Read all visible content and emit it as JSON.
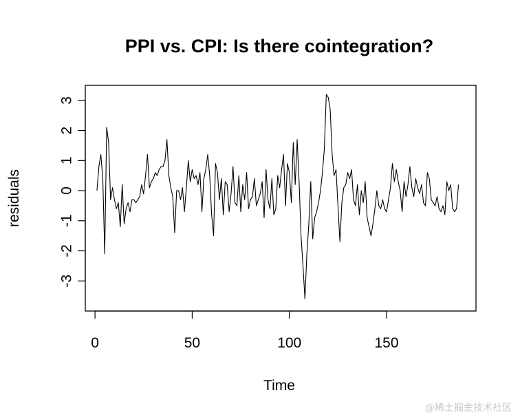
{
  "chart_data": {
    "type": "line",
    "title": "PPI vs. CPI: Is there cointegration?",
    "xlabel": "Time",
    "ylabel": "residuals",
    "xlim": [
      -5,
      196
    ],
    "ylim": [
      -4.0,
      3.5
    ],
    "xticks": [
      0,
      50,
      100,
      150
    ],
    "yticks": [
      -3,
      -2,
      -1,
      0,
      1,
      2,
      3
    ],
    "series": [
      {
        "name": "residuals",
        "x_start": 1,
        "values": [
          0.0,
          0.8,
          1.2,
          0.4,
          -2.1,
          2.1,
          1.6,
          -0.3,
          0.1,
          -0.3,
          -0.6,
          -0.4,
          -1.2,
          0.2,
          -1.1,
          -0.6,
          -0.4,
          -0.7,
          -0.3,
          -0.3,
          -0.4,
          -0.3,
          -0.2,
          0.2,
          -0.1,
          0.5,
          1.2,
          0.1,
          0.3,
          0.4,
          0.6,
          0.5,
          0.7,
          0.8,
          0.8,
          1.0,
          1.7,
          0.5,
          0.1,
          -0.2,
          -1.4,
          0.0,
          0.0,
          -0.3,
          0.1,
          -0.7,
          0.1,
          1.0,
          0.3,
          0.7,
          0.4,
          0.5,
          0.2,
          0.6,
          -0.7,
          0.4,
          0.7,
          1.2,
          0.5,
          -0.8,
          -1.5,
          0.9,
          0.6,
          -0.3,
          0.4,
          -0.8,
          0.3,
          0.2,
          -0.7,
          -0.1,
          0.8,
          -0.4,
          -0.5,
          0.5,
          -0.7,
          0.2,
          -0.3,
          0.6,
          -0.6,
          -0.3,
          -0.2,
          0.4,
          -0.5,
          -0.3,
          -0.1,
          0.3,
          -0.9,
          0.7,
          -0.3,
          -0.6,
          0.4,
          -0.8,
          -0.6,
          0.5,
          0.1,
          0.7,
          1.2,
          -0.5,
          0.9,
          0.6,
          -0.4,
          1.6,
          0.2,
          1.7,
          0.3,
          -1.5,
          -2.5,
          -3.6,
          -2.1,
          -1.1,
          0.3,
          -1.6,
          -0.9,
          -0.7,
          -0.4,
          0.0,
          0.6,
          1.4,
          3.2,
          3.1,
          2.7,
          1.2,
          0.5,
          0.7,
          -0.5,
          -1.7,
          -0.4,
          0.1,
          0.2,
          0.6,
          0.4,
          0.7,
          -0.3,
          -0.5,
          0.2,
          -0.8,
          0.0,
          -0.4,
          0.3,
          -0.9,
          -1.2,
          -1.5,
          -1.1,
          -0.6,
          0.0,
          -0.5,
          -0.6,
          -0.3,
          -0.6,
          -0.7,
          -0.3,
          0.1,
          0.9,
          0.3,
          0.7,
          0.3,
          0.0,
          -0.7,
          0.3,
          -0.2,
          0.2,
          0.8,
          0.1,
          -0.2,
          0.4,
          0.1,
          -0.1,
          0.2,
          -0.4,
          -0.5,
          0.6,
          0.4,
          -0.3,
          -0.4,
          -0.5,
          -0.2,
          -0.6,
          -0.7,
          -0.5,
          -0.8,
          0.3,
          0.0,
          0.2,
          -0.6,
          -0.7,
          -0.6,
          0.2
        ]
      }
    ]
  },
  "watermark": "@稀土掘金技术社区"
}
